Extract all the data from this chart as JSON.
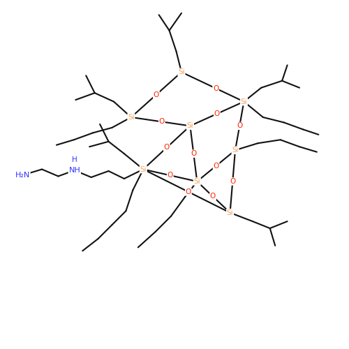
{
  "background_color": "#ffffff",
  "bond_color": "#111111",
  "si_color": "#f4a460",
  "o_color": "#ff2200",
  "n_color": "#3333ff",
  "lw": 1.5,
  "fs": 7.5,
  "figsize": [
    5.0,
    5.0
  ],
  "dpi": 100,
  "xlim": [
    0,
    10
  ],
  "ylim": [
    0,
    10
  ]
}
